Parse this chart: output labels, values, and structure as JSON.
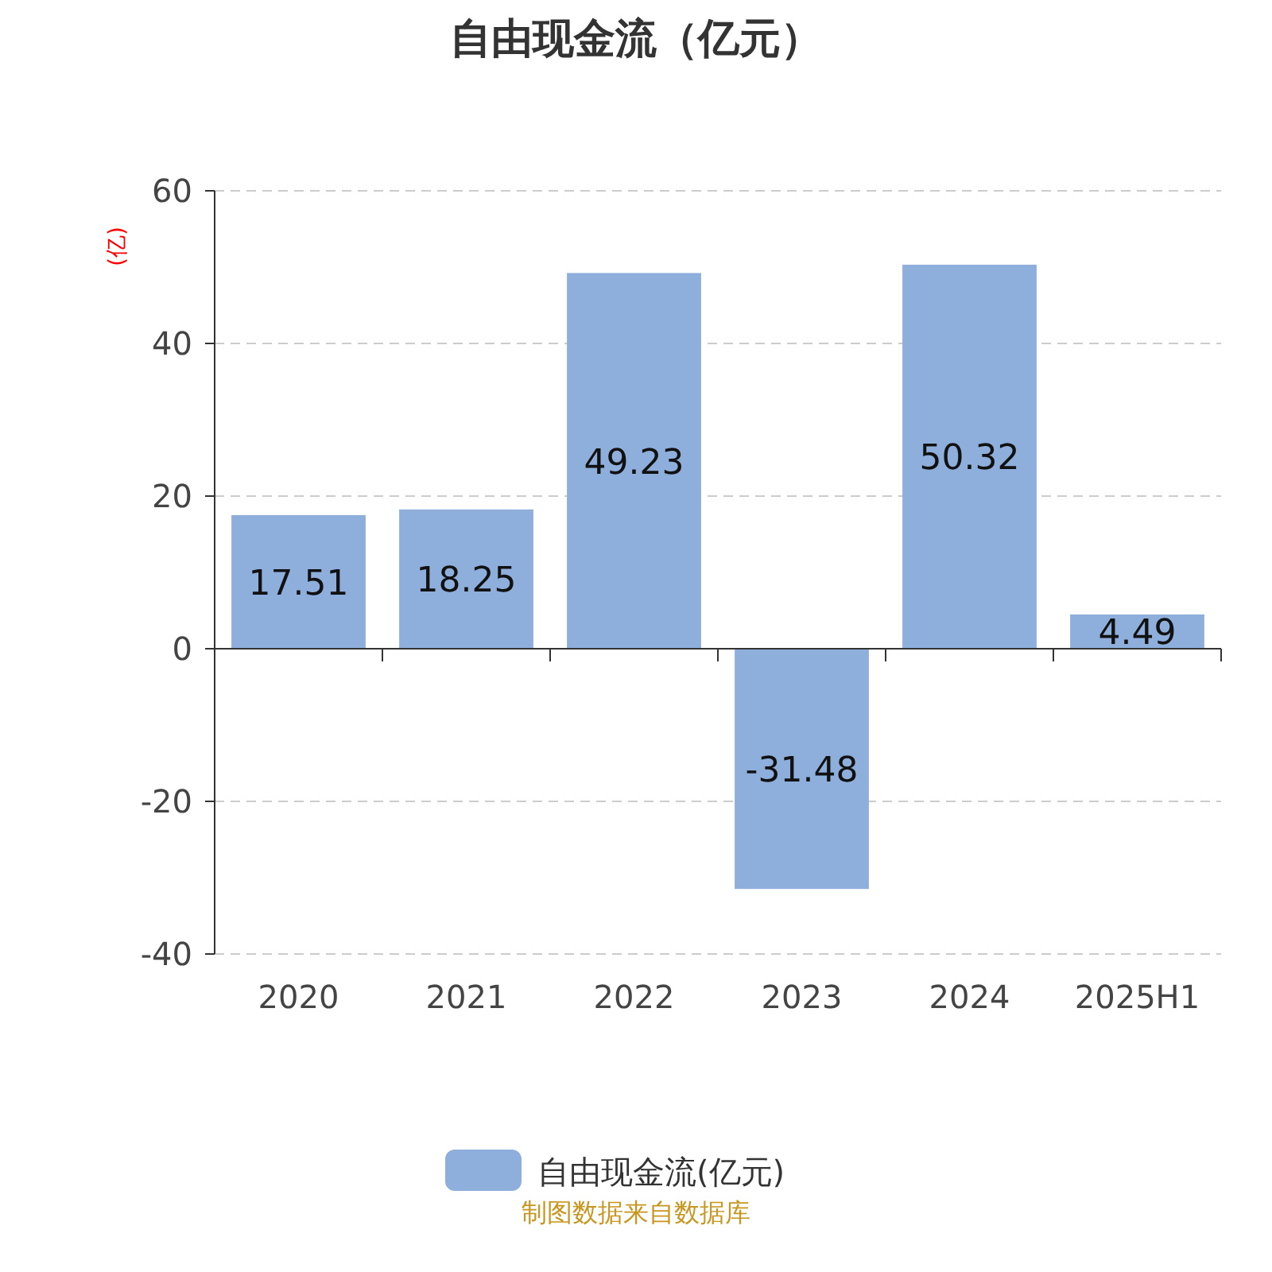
{
  "chart_data": {
    "type": "bar",
    "title": "自由现金流（亿元）",
    "ylabel": "(亿)",
    "categories": [
      "2020",
      "2021",
      "2022",
      "2023",
      "2024",
      "2025H1"
    ],
    "series": [
      {
        "name": "自由现金流(亿元)",
        "color": "#8eaedb",
        "values": [
          17.51,
          18.25,
          49.23,
          -31.48,
          50.32,
          4.49
        ]
      }
    ],
    "ylim": [
      -40,
      60
    ],
    "yticks": [
      -40,
      -20,
      0,
      20,
      40,
      60
    ],
    "grid": "y",
    "legend": "bottom",
    "data_labels": true,
    "annotations": [
      "制图数据来自数据库"
    ]
  }
}
